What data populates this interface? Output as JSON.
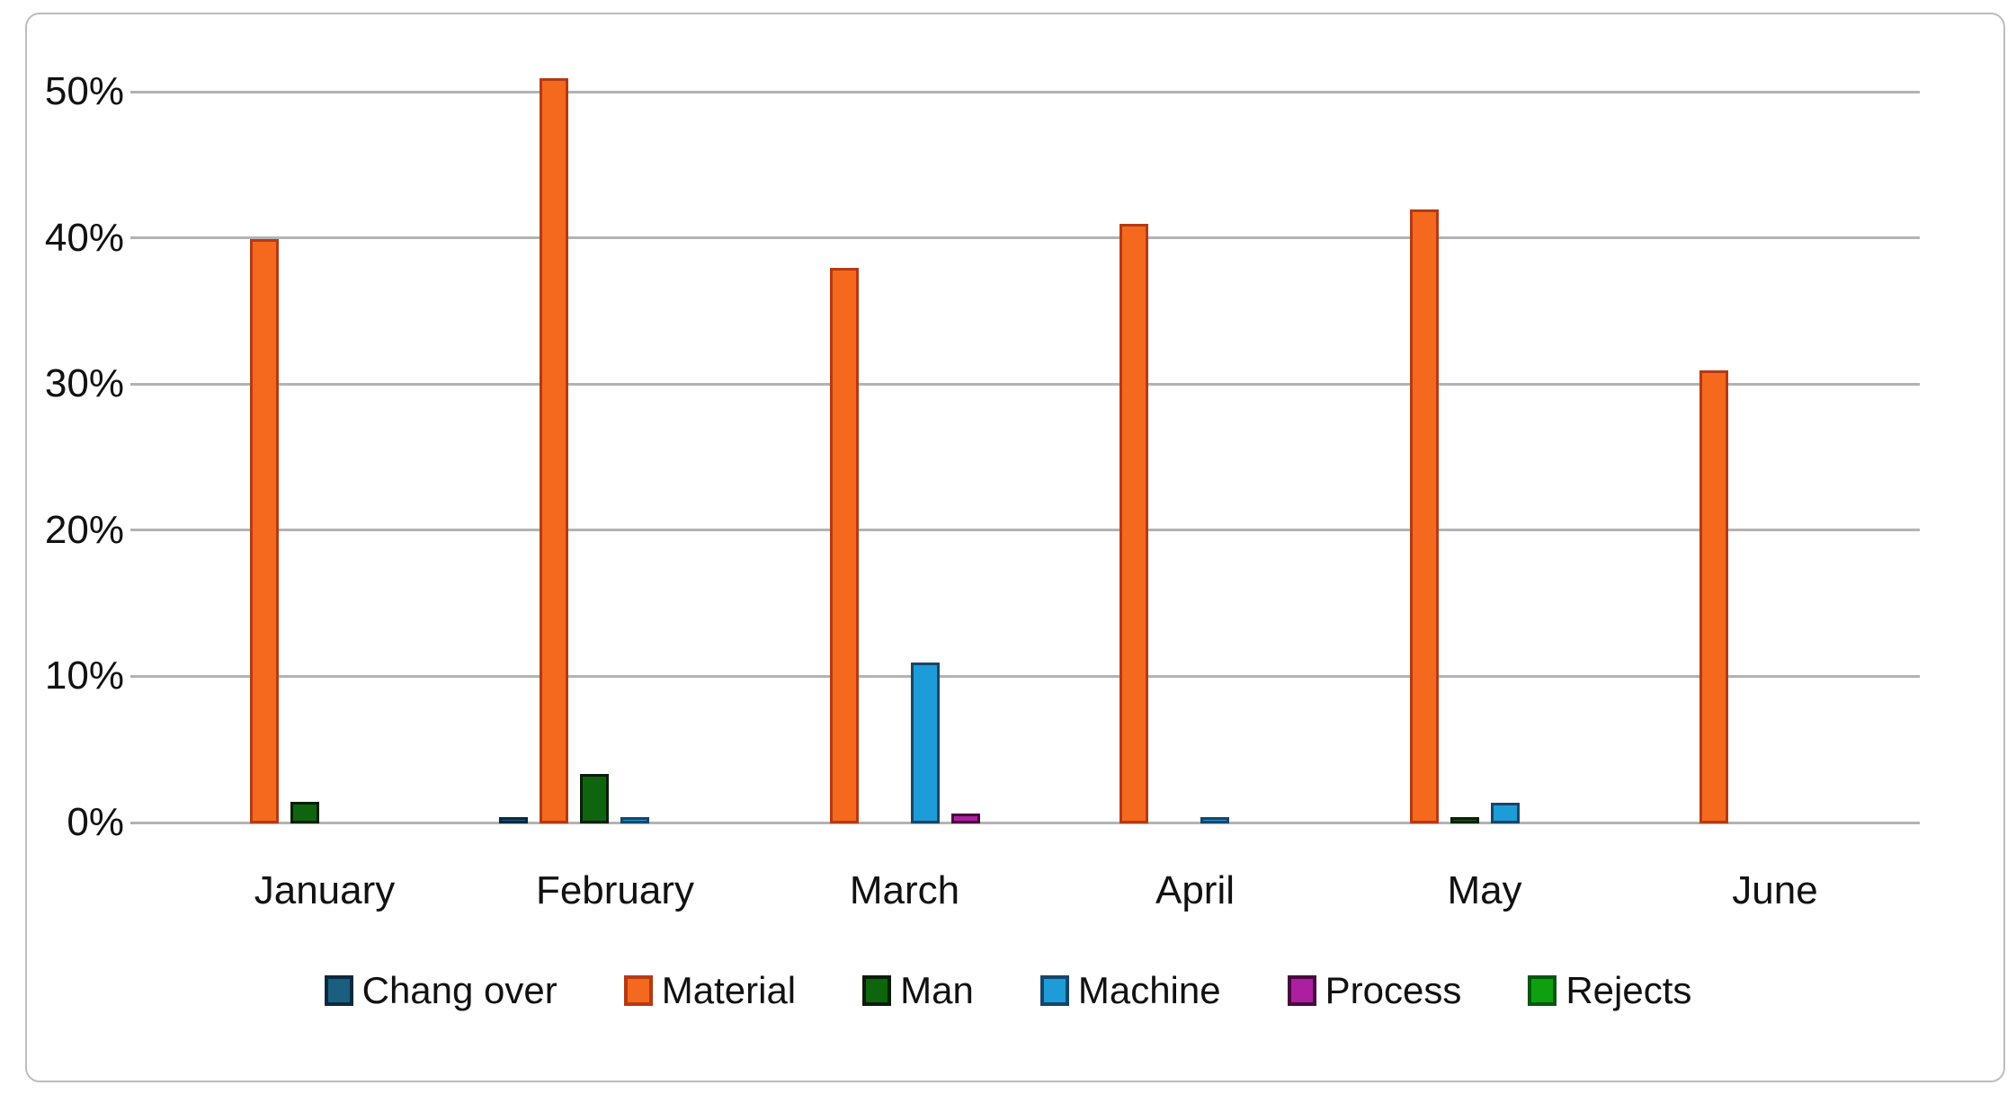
{
  "chart_data": {
    "type": "bar",
    "title": "",
    "xlabel": "",
    "ylabel": "",
    "categories": [
      "January",
      "February",
      "March",
      "April",
      "May",
      "June"
    ],
    "series": [
      {
        "name": "Chang over",
        "fill": "#1B5F7E",
        "border": "#0B2940",
        "values": [
          0,
          0.4,
          0,
          0,
          0,
          0
        ]
      },
      {
        "name": "Material",
        "fill": "#F4691E",
        "border": "#B53A14",
        "values": [
          40,
          51,
          38,
          41,
          42,
          31
        ]
      },
      {
        "name": "Man",
        "fill": "#0E650E",
        "border": "#0A1E0A",
        "values": [
          1.5,
          3.4,
          0,
          0,
          0.4,
          0
        ]
      },
      {
        "name": "Machine",
        "fill": "#1E9CD7",
        "border": "#15466B",
        "values": [
          0,
          0.4,
          11,
          0.4,
          1.4,
          0
        ]
      },
      {
        "name": "Process",
        "fill": "#AC1FA0",
        "border": "#49093F",
        "values": [
          0,
          0,
          0.7,
          0,
          0,
          0
        ]
      },
      {
        "name": "Rejects",
        "fill": "#0FA00F",
        "border": "#07570F",
        "values": [
          0,
          0,
          0,
          0,
          0,
          0
        ]
      }
    ],
    "yticks": [
      "0%",
      "10%",
      "20%",
      "30%",
      "40%",
      "50%"
    ],
    "ytick_step_percent": 10,
    "ylim": [
      0,
      55
    ],
    "grid": true,
    "legend_position": "bottom",
    "bar_style": "clustered-with-dark-outline"
  },
  "frame": {
    "background": "#FFFFFF",
    "border_color": "#BDBDBD"
  },
  "axis": {
    "tick_label_color": "#111111",
    "gridline_color": "#B3B3B3"
  }
}
